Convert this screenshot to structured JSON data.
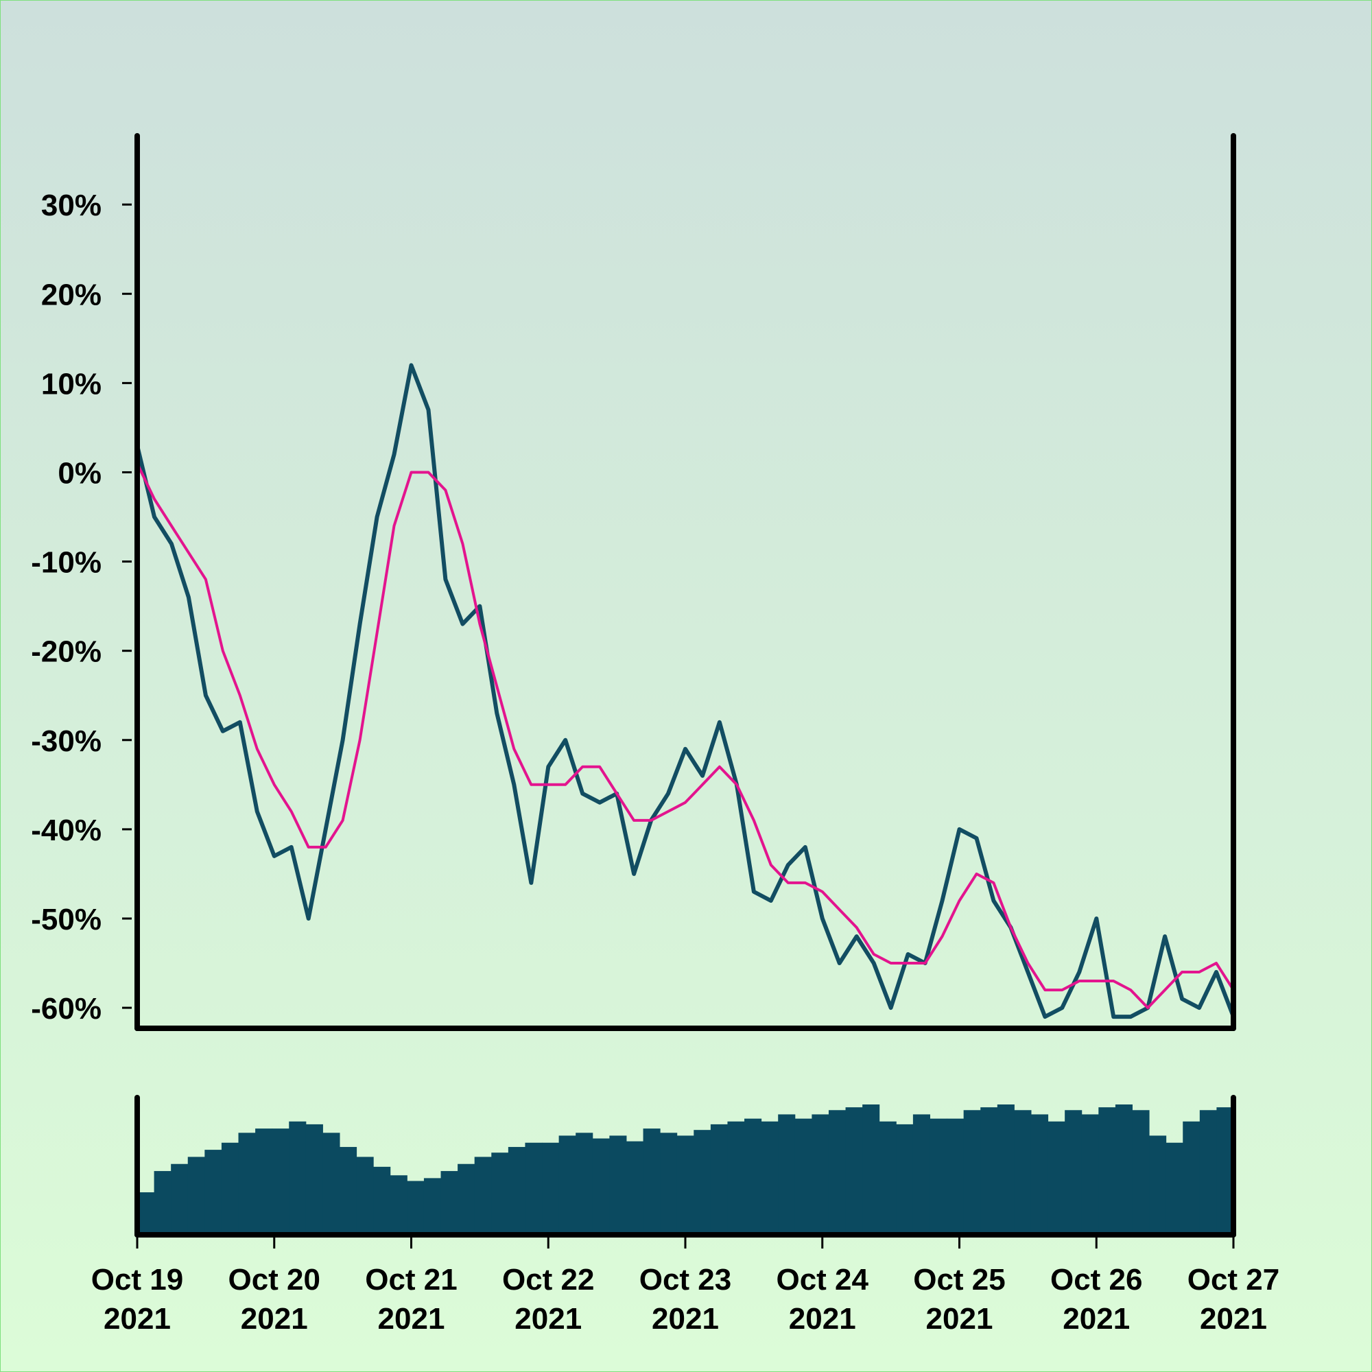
{
  "chart_data": [
    {
      "type": "line",
      "ylim": [
        -62.3,
        37.7
      ],
      "yticks": [
        {
          "value": -60,
          "label": "-60%"
        },
        {
          "value": -50,
          "label": "-50%"
        },
        {
          "value": -40,
          "label": "-40%"
        },
        {
          "value": -30,
          "label": "-30%"
        },
        {
          "value": -20,
          "label": "-20%"
        },
        {
          "value": -10,
          "label": "-10%"
        },
        {
          "value": 0,
          "label": "0%"
        },
        {
          "value": 10,
          "label": "10%"
        },
        {
          "value": 20,
          "label": "20%"
        },
        {
          "value": 30,
          "label": "30%"
        }
      ],
      "series": [
        {
          "color": "#124d62",
          "values": [
            3,
            -5,
            -8,
            -14,
            -25,
            -29,
            -28,
            -38,
            -43,
            -42,
            -50,
            -40,
            -30,
            -17,
            -5,
            2,
            12,
            7,
            -12,
            -17,
            -15,
            -27,
            -35,
            -46,
            -33,
            -30,
            -36,
            -37,
            -36,
            -45,
            -39,
            -36,
            -31,
            -34,
            -28,
            -35,
            -47,
            -48,
            -44,
            -42,
            -50,
            -55,
            -52,
            -55,
            -60,
            -54,
            -55,
            -48,
            -40,
            -41,
            -48,
            -51,
            -56,
            -61,
            -60,
            -56,
            -50,
            -61,
            -61,
            -60,
            -52,
            -59,
            -60,
            -56,
            -61
          ]
        },
        {
          "color": "#e3148e",
          "values": [
            1,
            -3,
            -6,
            -9,
            -12,
            -20,
            -25,
            -31,
            -35,
            -38,
            -42,
            -42,
            -39,
            -30,
            -18,
            -6,
            0,
            0,
            -2,
            -8,
            -17,
            -24,
            -31,
            -35,
            -35,
            -35,
            -33,
            -33,
            -36,
            -39,
            -39,
            -38,
            -37,
            -35,
            -33,
            -35,
            -39,
            -44,
            -46,
            -46,
            -47,
            -49,
            -51,
            -54,
            -55,
            -55,
            -55,
            -52,
            -48,
            -45,
            -46,
            -51,
            -55,
            -58,
            -58,
            -57,
            -57,
            -57,
            -58,
            -60,
            -58,
            -56,
            -56,
            -55,
            -58
          ]
        }
      ]
    },
    {
      "type": "bar",
      "color": "#0b4a60",
      "values": [
        30,
        45,
        50,
        55,
        60,
        65,
        72,
        75,
        75,
        80,
        78,
        72,
        62,
        55,
        48,
        42,
        38,
        40,
        45,
        50,
        55,
        58,
        62,
        65,
        65,
        70,
        72,
        68,
        70,
        66,
        75,
        72,
        70,
        74,
        78,
        80,
        82,
        80,
        85,
        82,
        85,
        88,
        90,
        92,
        80,
        78,
        85,
        82,
        82,
        88,
        90,
        92,
        88,
        85,
        80,
        88,
        85,
        90,
        92,
        88,
        70,
        65,
        80,
        88,
        90
      ],
      "xticks": [
        [
          "Oct 19",
          "2021"
        ],
        [
          "Oct 20",
          "2021"
        ],
        [
          "Oct 21",
          "2021"
        ],
        [
          "Oct 22",
          "2021"
        ],
        [
          "Oct 23",
          "2021"
        ],
        [
          "Oct 24",
          "2021"
        ],
        [
          "Oct 25",
          "2021"
        ],
        [
          "Oct 26",
          "2021"
        ],
        [
          "Oct 27",
          "2021"
        ]
      ]
    }
  ]
}
